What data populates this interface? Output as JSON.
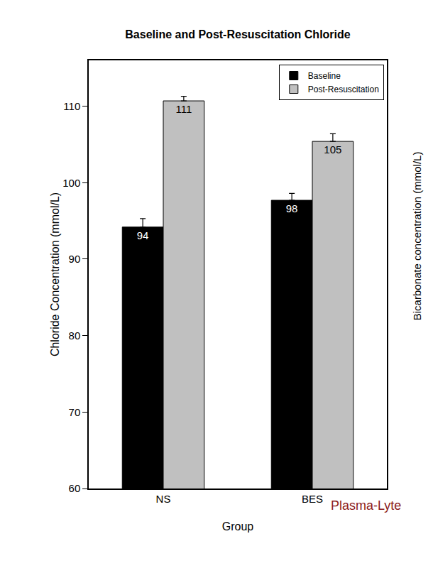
{
  "chart_data": {
    "type": "bar",
    "title": "Baseline and Post-Resuscitation Chloride",
    "x_label": "Group",
    "y_label": "Chloride Concentration (mmol/L)",
    "categories": [
      "NS",
      "BES"
    ],
    "series": [
      {
        "name": "Baseline",
        "color": "#000000",
        "values": [
          94.2,
          97.7
        ],
        "value_labels": [
          "94",
          "98"
        ],
        "errors": [
          1.1,
          0.9
        ]
      },
      {
        "name": "Post-Resuscitation",
        "color": "#c0c0c0",
        "values": [
          110.7,
          105.4
        ],
        "value_labels": [
          "111",
          "105"
        ],
        "errors": [
          0.6,
          1.0
        ]
      }
    ],
    "ylim": [
      60,
      116
    ],
    "yticks": [
      60,
      70,
      80,
      90,
      100,
      110
    ],
    "grid": false,
    "legend": "top right",
    "data_labels": true,
    "annotations": [
      "Plasma-Lyte",
      "Bicarbonate concentration (mmol/L)"
    ]
  }
}
